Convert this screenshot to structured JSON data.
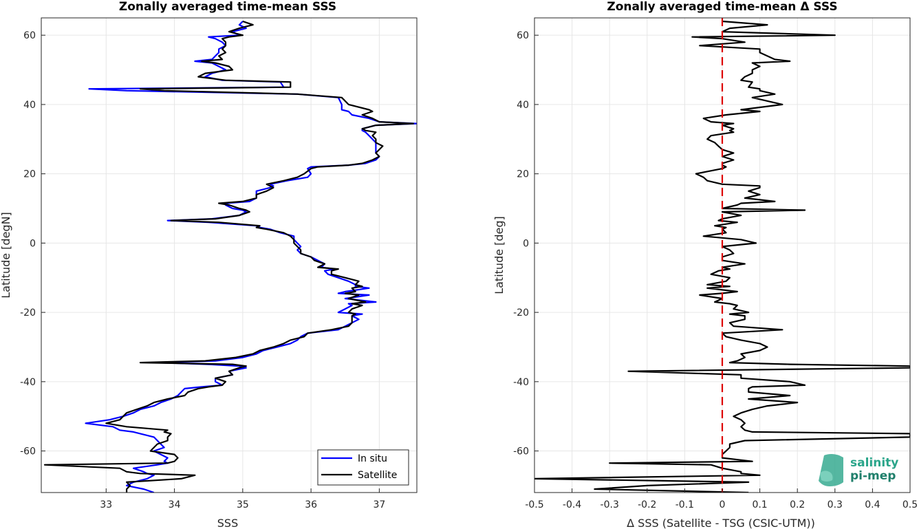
{
  "chart_data": [
    {
      "type": "line",
      "title": "Zonally averaged time-mean SSS",
      "xlabel": "SSS",
      "ylabel": "Latitude [degN]",
      "xlim": [
        32.05,
        37.55
      ],
      "ylim": [
        -72,
        65
      ],
      "xticks": [
        33,
        34,
        35,
        36,
        37
      ],
      "yticks": [
        -60,
        -40,
        -20,
        0,
        20,
        40,
        60
      ],
      "grid": true,
      "legend_position": "bottom-right",
      "series": [
        {
          "name": "In situ",
          "color": "#0000ff",
          "lat": [
            64,
            63,
            62,
            61,
            60,
            59.5,
            59,
            58,
            57,
            56,
            55,
            54,
            53,
            52.5,
            52,
            51,
            50,
            49,
            48,
            47,
            46.5,
            45,
            44.5,
            44,
            43,
            42,
            40,
            38.5,
            38,
            37,
            36,
            35,
            34.5,
            34,
            33,
            32.5,
            32,
            31,
            30,
            29,
            28,
            27,
            26,
            25,
            24,
            23,
            22.5,
            22,
            21.5,
            20,
            19,
            18,
            17,
            16.5,
            16,
            15,
            14,
            13,
            12,
            11.5,
            11,
            10,
            9.5,
            9,
            8,
            7,
            6.5,
            6,
            5,
            4.5,
            4,
            3,
            2,
            1,
            0,
            -1,
            -2,
            -3,
            -4,
            -5,
            -6,
            -7,
            -7.5,
            -8,
            -9,
            -10,
            -11,
            -12,
            -12.5,
            -13,
            -14,
            -14.5,
            -15,
            -16,
            -17,
            -17.5,
            -18,
            -19,
            -20,
            -20.5,
            -21,
            -22,
            -23,
            -24,
            -25,
            -26,
            -27,
            -28,
            -29,
            -30,
            -31,
            -32,
            -33,
            -34,
            -34.5,
            -35,
            -35.5,
            -36,
            -37,
            -38,
            -39,
            -40,
            -41,
            -41.5,
            -42,
            -43,
            -44,
            -45,
            -46,
            -47,
            -48,
            -49,
            -50,
            -51,
            -52,
            -53,
            -54,
            -54.5,
            -55,
            -56,
            -57,
            -58,
            -59,
            -60,
            -61,
            -62,
            -63,
            -63.5,
            -64,
            -65,
            -66,
            -66.5,
            -67,
            -68,
            -69,
            -70,
            -71,
            -72
          ],
          "values": [
            35.0,
            34.95,
            35.05,
            34.85,
            34.95,
            34.5,
            34.6,
            34.7,
            34.75,
            34.65,
            34.65,
            34.6,
            34.55,
            34.3,
            34.55,
            34.65,
            34.75,
            34.55,
            34.45,
            34.7,
            35.55,
            35.6,
            32.75,
            33.3,
            35.8,
            36.4,
            36.45,
            36.45,
            36.55,
            36.6,
            36.85,
            37.0,
            37.55,
            36.95,
            36.75,
            36.75,
            36.8,
            36.85,
            36.9,
            36.95,
            36.95,
            36.95,
            36.95,
            37.0,
            36.95,
            36.8,
            36.55,
            36.0,
            35.95,
            36.0,
            35.95,
            35.65,
            35.4,
            35.45,
            35.4,
            35.2,
            35.2,
            35.2,
            35.1,
            34.75,
            34.75,
            34.85,
            35.0,
            35.05,
            34.95,
            34.55,
            33.9,
            34.5,
            35.2,
            35.25,
            35.4,
            35.55,
            35.75,
            35.75,
            35.8,
            35.85,
            35.8,
            35.85,
            36.0,
            36.1,
            36.2,
            36.15,
            36.35,
            36.2,
            36.25,
            36.4,
            36.55,
            36.65,
            36.65,
            36.85,
            36.5,
            36.4,
            36.85,
            36.5,
            36.95,
            36.55,
            36.6,
            36.5,
            36.4,
            36.75,
            36.6,
            36.7,
            36.6,
            36.5,
            36.4,
            35.95,
            35.85,
            35.8,
            35.7,
            35.5,
            35.3,
            35.2,
            35.0,
            34.6,
            33.75,
            34.5,
            34.95,
            35.05,
            34.8,
            34.85,
            34.6,
            34.6,
            34.7,
            34.4,
            34.15,
            34.1,
            34.05,
            33.95,
            33.8,
            33.7,
            33.5,
            33.4,
            33.25,
            33.05,
            32.7,
            33.1,
            33.2,
            33.4,
            33.5,
            33.7,
            33.75,
            33.8,
            33.85,
            33.7,
            33.8,
            33.9,
            33.85,
            33.9,
            33.75,
            33.4,
            33.55,
            33.6,
            33.7,
            33.6,
            33.4,
            33.3,
            33.55,
            33.7,
            33.2
          ],
          "line_width": 2.2
        },
        {
          "name": "Satellite",
          "color": "#000000",
          "lat": [
            64,
            63,
            62,
            61,
            60,
            59.5,
            59,
            58,
            57,
            56,
            55,
            54,
            53,
            52.5,
            52,
            51,
            50,
            49,
            48,
            47,
            46.5,
            45,
            44.5,
            44,
            43,
            42,
            40,
            38.5,
            38,
            37,
            36,
            35,
            34.5,
            34,
            33,
            32.5,
            32,
            31,
            30,
            29,
            28,
            27,
            26,
            25,
            24,
            23,
            22.5,
            22,
            21.5,
            20,
            19,
            18,
            17,
            16.5,
            16,
            15,
            14,
            13,
            12,
            11.5,
            11,
            10,
            9.5,
            9,
            8,
            7,
            6.5,
            6,
            5,
            4.5,
            4,
            3,
            2,
            1,
            0,
            -1,
            -2,
            -3,
            -4,
            -5,
            -6,
            -7,
            -7.5,
            -8,
            -9,
            -10,
            -11,
            -12,
            -12.5,
            -13,
            -14,
            -14.5,
            -15,
            -16,
            -17,
            -17.5,
            -18,
            -19,
            -20,
            -20.5,
            -21,
            -22,
            -23,
            -24,
            -25,
            -26,
            -27,
            -28,
            -29,
            -30,
            -31,
            -32,
            -33,
            -34,
            -34.5,
            -35,
            -35.5,
            -36,
            -37,
            -38,
            -39,
            -40,
            -41,
            -41.5,
            -42,
            -43,
            -44,
            -45,
            -46,
            -47,
            -48,
            -49,
            -50,
            -51,
            -52,
            -53,
            -54,
            -54.5,
            -55,
            -56,
            -57,
            -58,
            -59,
            -60,
            -61,
            -62,
            -63,
            -63.5,
            -64,
            -65,
            -66,
            -66.5,
            -67,
            -68,
            -69,
            -70,
            -71,
            -72
          ],
          "values": [
            35.0,
            35.15,
            34.95,
            34.8,
            35.0,
            34.8,
            34.7,
            34.75,
            34.75,
            34.7,
            34.75,
            34.65,
            34.7,
            34.4,
            34.6,
            34.8,
            34.85,
            34.45,
            34.35,
            34.75,
            35.7,
            35.7,
            33.5,
            33.85,
            35.8,
            36.45,
            36.55,
            36.85,
            36.9,
            36.75,
            36.9,
            37.0,
            37.5,
            36.95,
            36.75,
            36.8,
            36.95,
            36.9,
            36.95,
            36.95,
            37.05,
            37.0,
            36.95,
            37.0,
            36.9,
            36.75,
            36.55,
            36.1,
            36.0,
            35.9,
            35.8,
            35.6,
            35.35,
            35.4,
            35.45,
            35.35,
            35.2,
            35.2,
            35.0,
            34.65,
            34.8,
            34.95,
            35.05,
            35.1,
            34.95,
            34.6,
            33.95,
            34.65,
            35.25,
            35.2,
            35.35,
            35.6,
            35.7,
            35.75,
            35.75,
            35.8,
            35.85,
            35.85,
            36.0,
            36.05,
            36.2,
            36.1,
            36.4,
            36.3,
            36.3,
            36.5,
            36.7,
            36.65,
            36.75,
            36.6,
            36.65,
            36.5,
            36.7,
            36.55,
            36.8,
            36.6,
            36.75,
            36.6,
            36.55,
            36.65,
            36.6,
            36.6,
            36.6,
            36.55,
            36.3,
            35.95,
            35.9,
            35.7,
            35.6,
            35.45,
            35.25,
            35.15,
            34.9,
            34.45,
            33.5,
            34.85,
            35.05,
            34.95,
            34.8,
            34.85,
            34.6,
            34.75,
            34.7,
            34.5,
            34.35,
            34.2,
            34.15,
            33.9,
            33.7,
            33.6,
            33.45,
            33.3,
            33.25,
            33.2,
            33.0,
            33.3,
            33.9,
            33.85,
            33.95,
            33.9,
            33.9,
            33.75,
            33.7,
            33.65,
            34.0,
            34.05,
            34.0,
            33.9,
            32.1,
            33.2,
            33.3,
            33.5,
            34.3,
            34.1,
            33.3,
            33.35,
            33.3,
            33.3
          ],
          "line_width": 2.2
        }
      ]
    },
    {
      "type": "line",
      "title": "Zonally averaged time-mean Δ SSS",
      "xlabel": "Δ SSS (Satellite - TSG (CSIC-UTM))",
      "ylabel": "Latitude [deg]",
      "xlim": [
        -0.5,
        0.5
      ],
      "ylim": [
        -72,
        65
      ],
      "xticks": [
        -0.5,
        -0.4,
        -0.3,
        -0.2,
        -0.1,
        0,
        0.1,
        0.2,
        0.3,
        0.4,
        0.5
      ],
      "yticks": [
        -60,
        -40,
        -20,
        0,
        20,
        40,
        60
      ],
      "grid": true,
      "reference_line": {
        "x": 0,
        "color": "#dd0000",
        "style": "dashed"
      },
      "series": [
        {
          "name": "",
          "color": "#000000",
          "lat": [
            64,
            63,
            62,
            61,
            60,
            59.5,
            59,
            58,
            57,
            56,
            55,
            54,
            53,
            52.5,
            52,
            51,
            50,
            49,
            48,
            47,
            46.5,
            45,
            44.5,
            44,
            43,
            42,
            40,
            38.5,
            38,
            37,
            36,
            35,
            34.5,
            34,
            33,
            32.5,
            32,
            31,
            30,
            29,
            28,
            27,
            26,
            25,
            24,
            23,
            22.5,
            22,
            21.5,
            20,
            19,
            18,
            17,
            16.5,
            16,
            15,
            14,
            13,
            12,
            11.5,
            11,
            10,
            9.5,
            9,
            8,
            7,
            6.5,
            6,
            5,
            4.5,
            4,
            3,
            2,
            1,
            0,
            -1,
            -2,
            -3,
            -4,
            -5,
            -6,
            -7,
            -7.5,
            -8,
            -9,
            -10,
            -11,
            -12,
            -12.5,
            -13,
            -14,
            -14.5,
            -15,
            -16,
            -17,
            -17.5,
            -18,
            -19,
            -20,
            -20.5,
            -21,
            -22,
            -23,
            -24,
            -25,
            -26,
            -27,
            -28,
            -29,
            -30,
            -31,
            -32,
            -33,
            -34,
            -34.5,
            -35,
            -35.5,
            -36,
            -37,
            -38,
            -39,
            -40,
            -41,
            -41.5,
            -42,
            -43,
            -44,
            -45,
            -46,
            -47,
            -48,
            -49,
            -50,
            -51,
            -52,
            -53,
            -54,
            -54.5,
            -55,
            -56,
            -57,
            -58,
            -59,
            -60,
            -61,
            -62,
            -63,
            -63.5,
            -64,
            -65,
            -66,
            -66.5,
            -67,
            -68,
            -69,
            -70,
            -71,
            -72
          ],
          "values": [
            0.0,
            0.12,
            0.02,
            0.0,
            0.3,
            -0.08,
            0.0,
            0.06,
            -0.06,
            0.1,
            0.1,
            0.12,
            0.14,
            0.18,
            0.08,
            0.1,
            0.08,
            0.08,
            0.06,
            0.05,
            0.08,
            0.07,
            0.1,
            0.1,
            0.14,
            0.08,
            0.16,
            0.05,
            0.1,
            0.01,
            -0.05,
            -0.03,
            0.03,
            0.0,
            0.03,
            0.02,
            0.03,
            -0.03,
            -0.04,
            -0.02,
            -0.01,
            0.0,
            0.03,
            0.0,
            0.03,
            0.0,
            0.0,
            0.01,
            0.0,
            -0.07,
            -0.05,
            -0.04,
            0.0,
            0.1,
            0.1,
            0.07,
            0.1,
            0.06,
            0.14,
            0.05,
            0.04,
            0.0,
            0.22,
            0.0,
            0.05,
            0.0,
            -0.01,
            0.04,
            -0.02,
            0.01,
            0.0,
            0.01,
            -0.05,
            0.05,
            0.09,
            0.0,
            0.02,
            0.03,
            0.0,
            0.0,
            0.06,
            0.0,
            0.02,
            -0.01,
            -0.03,
            0.02,
            0.01,
            -0.04,
            0.02,
            -0.04,
            0.04,
            0.0,
            -0.06,
            0.0,
            -0.02,
            0.02,
            0.04,
            0.03,
            0.07,
            0.02,
            0.06,
            0.06,
            0.02,
            0.03,
            0.16,
            0.0,
            0.01,
            0.05,
            0.1,
            0.12,
            0.1,
            0.05,
            0.06,
            0.04,
            0.02,
            0.18,
            0.5,
            0.5,
            -0.25,
            0.05,
            0.05,
            0.18,
            0.22,
            0.08,
            0.07,
            0.07,
            0.18,
            0.07,
            0.2,
            0.12,
            0.08,
            0.05,
            0.03,
            0.05,
            0.06,
            0.05,
            0.06,
            0.08,
            0.5,
            0.5,
            0.06,
            0.02,
            0.02,
            0.01,
            0.0,
            0.0,
            0.08,
            -0.3,
            -0.03,
            0.0,
            0.05,
            0.05,
            0.1,
            -0.5,
            0.07,
            -0.2,
            -0.34,
            0.07,
            0.5,
            0.04,
            -0.12,
            0.1,
            0.15
          ],
          "line_width": 2.2
        }
      ]
    }
  ],
  "legend": {
    "entries": [
      {
        "label": "In situ",
        "color": "#0000ff"
      },
      {
        "label": "Satellite",
        "color": "#000000"
      }
    ]
  },
  "logo": {
    "line1": "salinity",
    "line2": "pi-mep"
  }
}
